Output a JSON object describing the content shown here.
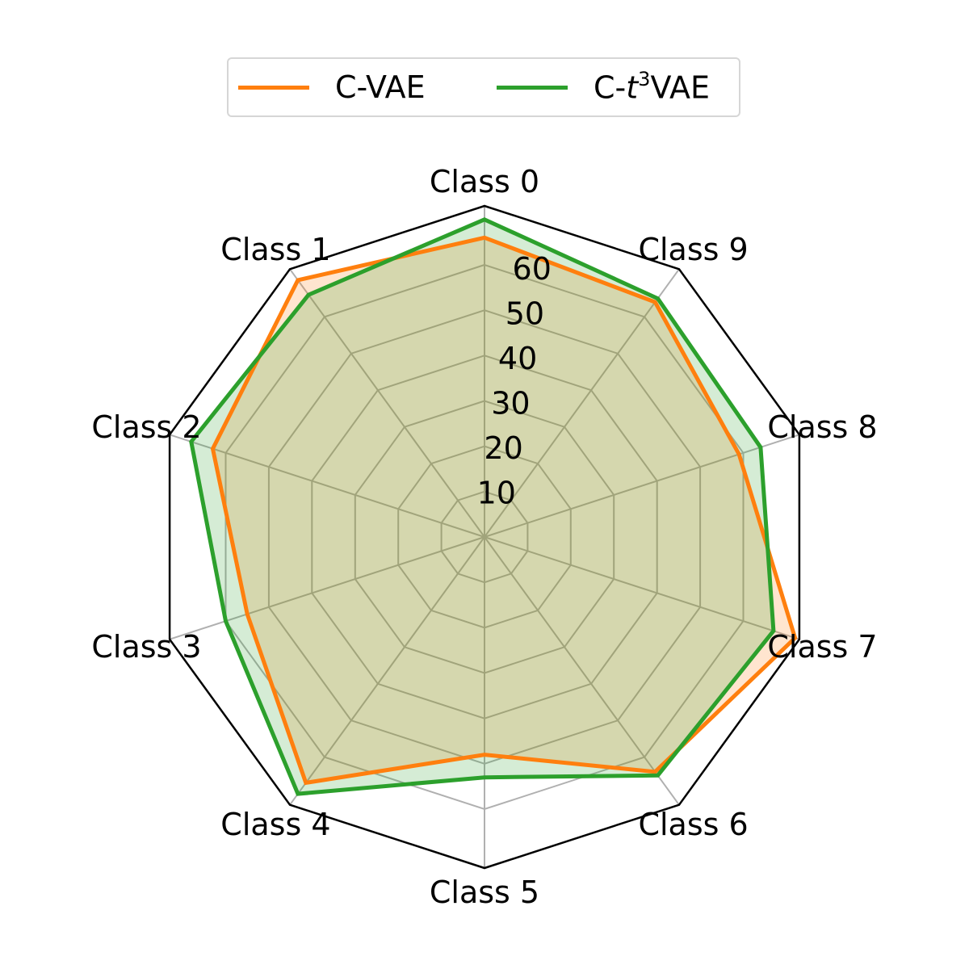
{
  "chart_data": {
    "type": "radar",
    "title": "",
    "categories": [
      "Class 0",
      "Class 1",
      "Class 2",
      "Class 3",
      "Class 4",
      "Class 5",
      "Class 6",
      "Class 7",
      "Class 8",
      "Class 9"
    ],
    "radial_ticks": [
      10,
      20,
      30,
      40,
      50,
      60
    ],
    "radial_max": 73,
    "grid": true,
    "legend_position": "top-center",
    "series": [
      {
        "name": "C-VAE",
        "color": "#ff7f0e",
        "fill": "rgba(255,127,14,0.2)",
        "values": [
          66,
          70,
          63,
          55,
          67,
          48,
          64,
          72,
          59,
          64
        ]
      },
      {
        "name": "C-t³VAE",
        "name_base": "C-",
        "name_italic": "t",
        "name_sup": "3",
        "name_tail": "VAE",
        "color": "#2ca02c",
        "fill": "rgba(44,160,44,0.2)",
        "values": [
          70,
          66,
          68,
          60,
          70,
          53,
          65,
          67,
          64,
          65
        ]
      }
    ]
  }
}
